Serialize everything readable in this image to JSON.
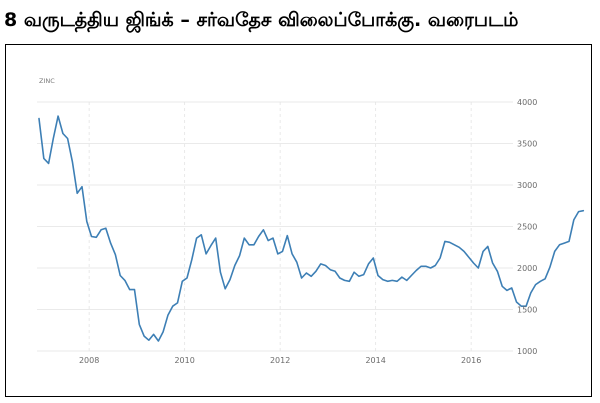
{
  "page": {
    "title": "8 வருடத்திய ஜிங்க் – சர்வதேச விலைப்போக்கு. வரைபடம்"
  },
  "colors": {
    "line": "#3d7fb5",
    "grid": "#e3e3e3",
    "axis_text": "#6b6b6b",
    "border": "#000000"
  },
  "chart_data": {
    "type": "line",
    "series_label": "ZINC",
    "y_axis_side": "right",
    "ylim": [
      1000,
      4000
    ],
    "xlim": [
      2006.8,
      2017.3
    ],
    "grid": true,
    "y_ticks": [
      {
        "value": 1000,
        "label": "1000"
      },
      {
        "value": 1500,
        "label": "1500"
      },
      {
        "value": 2000,
        "label": "2000"
      },
      {
        "value": 2500,
        "label": "2500"
      },
      {
        "value": 3000,
        "label": "3000"
      },
      {
        "value": 3500,
        "label": "3500"
      },
      {
        "value": 4000,
        "label": "4000"
      }
    ],
    "x_ticks": [
      {
        "value": 2008,
        "label": "2008"
      },
      {
        "value": 2010,
        "label": "2010"
      },
      {
        "value": 2012,
        "label": "2012"
      },
      {
        "value": 2014,
        "label": "2014"
      },
      {
        "value": 2016,
        "label": "2016"
      }
    ],
    "series": [
      {
        "points": [
          [
            2006.95,
            3800
          ],
          [
            2007.05,
            3320
          ],
          [
            2007.15,
            3260
          ],
          [
            2007.25,
            3560
          ],
          [
            2007.35,
            3830
          ],
          [
            2007.45,
            3620
          ],
          [
            2007.55,
            3560
          ],
          [
            2007.65,
            3280
          ],
          [
            2007.75,
            2900
          ],
          [
            2007.85,
            2980
          ],
          [
            2007.95,
            2560
          ],
          [
            2008.05,
            2380
          ],
          [
            2008.15,
            2370
          ],
          [
            2008.25,
            2460
          ],
          [
            2008.35,
            2480
          ],
          [
            2008.45,
            2300
          ],
          [
            2008.55,
            2160
          ],
          [
            2008.65,
            1910
          ],
          [
            2008.75,
            1850
          ],
          [
            2008.85,
            1740
          ],
          [
            2008.95,
            1740
          ],
          [
            2009.05,
            1320
          ],
          [
            2009.15,
            1180
          ],
          [
            2009.25,
            1130
          ],
          [
            2009.35,
            1200
          ],
          [
            2009.45,
            1120
          ],
          [
            2009.55,
            1230
          ],
          [
            2009.65,
            1430
          ],
          [
            2009.75,
            1540
          ],
          [
            2009.85,
            1580
          ],
          [
            2009.95,
            1840
          ],
          [
            2010.05,
            1880
          ],
          [
            2010.15,
            2100
          ],
          [
            2010.25,
            2360
          ],
          [
            2010.35,
            2400
          ],
          [
            2010.45,
            2170
          ],
          [
            2010.55,
            2270
          ],
          [
            2010.65,
            2360
          ],
          [
            2010.75,
            1950
          ],
          [
            2010.85,
            1750
          ],
          [
            2010.95,
            1860
          ],
          [
            2011.05,
            2030
          ],
          [
            2011.15,
            2150
          ],
          [
            2011.25,
            2360
          ],
          [
            2011.35,
            2280
          ],
          [
            2011.45,
            2280
          ],
          [
            2011.55,
            2380
          ],
          [
            2011.65,
            2460
          ],
          [
            2011.75,
            2330
          ],
          [
            2011.85,
            2360
          ],
          [
            2011.95,
            2170
          ],
          [
            2012.05,
            2200
          ],
          [
            2012.15,
            2390
          ],
          [
            2012.25,
            2170
          ],
          [
            2012.35,
            2070
          ],
          [
            2012.45,
            1880
          ],
          [
            2012.55,
            1940
          ],
          [
            2012.65,
            1900
          ],
          [
            2012.75,
            1960
          ],
          [
            2012.85,
            2050
          ],
          [
            2012.95,
            2030
          ],
          [
            2013.05,
            1980
          ],
          [
            2013.15,
            1960
          ],
          [
            2013.25,
            1880
          ],
          [
            2013.35,
            1850
          ],
          [
            2013.45,
            1840
          ],
          [
            2013.55,
            1950
          ],
          [
            2013.65,
            1900
          ],
          [
            2013.75,
            1920
          ],
          [
            2013.85,
            2050
          ],
          [
            2013.95,
            2120
          ],
          [
            2014.05,
            1910
          ],
          [
            2014.15,
            1860
          ],
          [
            2014.25,
            1840
          ],
          [
            2014.35,
            1850
          ],
          [
            2014.45,
            1840
          ],
          [
            2014.55,
            1890
          ],
          [
            2014.65,
            1850
          ],
          [
            2014.75,
            1910
          ],
          [
            2014.85,
            1970
          ],
          [
            2014.95,
            2020
          ],
          [
            2015.05,
            2020
          ],
          [
            2015.15,
            2000
          ],
          [
            2015.25,
            2030
          ],
          [
            2015.35,
            2120
          ],
          [
            2015.45,
            2320
          ],
          [
            2015.55,
            2310
          ],
          [
            2015.65,
            2280
          ],
          [
            2015.75,
            2250
          ],
          [
            2015.85,
            2200
          ],
          [
            2015.95,
            2130
          ],
          [
            2016.05,
            2060
          ],
          [
            2016.15,
            2000
          ],
          [
            2016.25,
            2200
          ],
          [
            2016.35,
            2260
          ],
          [
            2016.45,
            2060
          ],
          [
            2016.55,
            1960
          ],
          [
            2016.65,
            1780
          ],
          [
            2016.75,
            1730
          ],
          [
            2016.85,
            1760
          ],
          [
            2016.95,
            1590
          ],
          [
            2017.05,
            1540
          ],
          [
            2017.15,
            1540
          ],
          [
            2017.25,
            1700
          ],
          [
            2017.35,
            1800
          ],
          [
            2017.45,
            1840
          ],
          [
            2017.55,
            1870
          ],
          [
            2017.65,
            2010
          ],
          [
            2017.75,
            2200
          ],
          [
            2017.85,
            2280
          ],
          [
            2017.95,
            2300
          ],
          [
            2018.05,
            2320
          ],
          [
            2018.15,
            2580
          ],
          [
            2018.25,
            2680
          ],
          [
            2018.35,
            2690
          ]
        ]
      }
    ]
  }
}
